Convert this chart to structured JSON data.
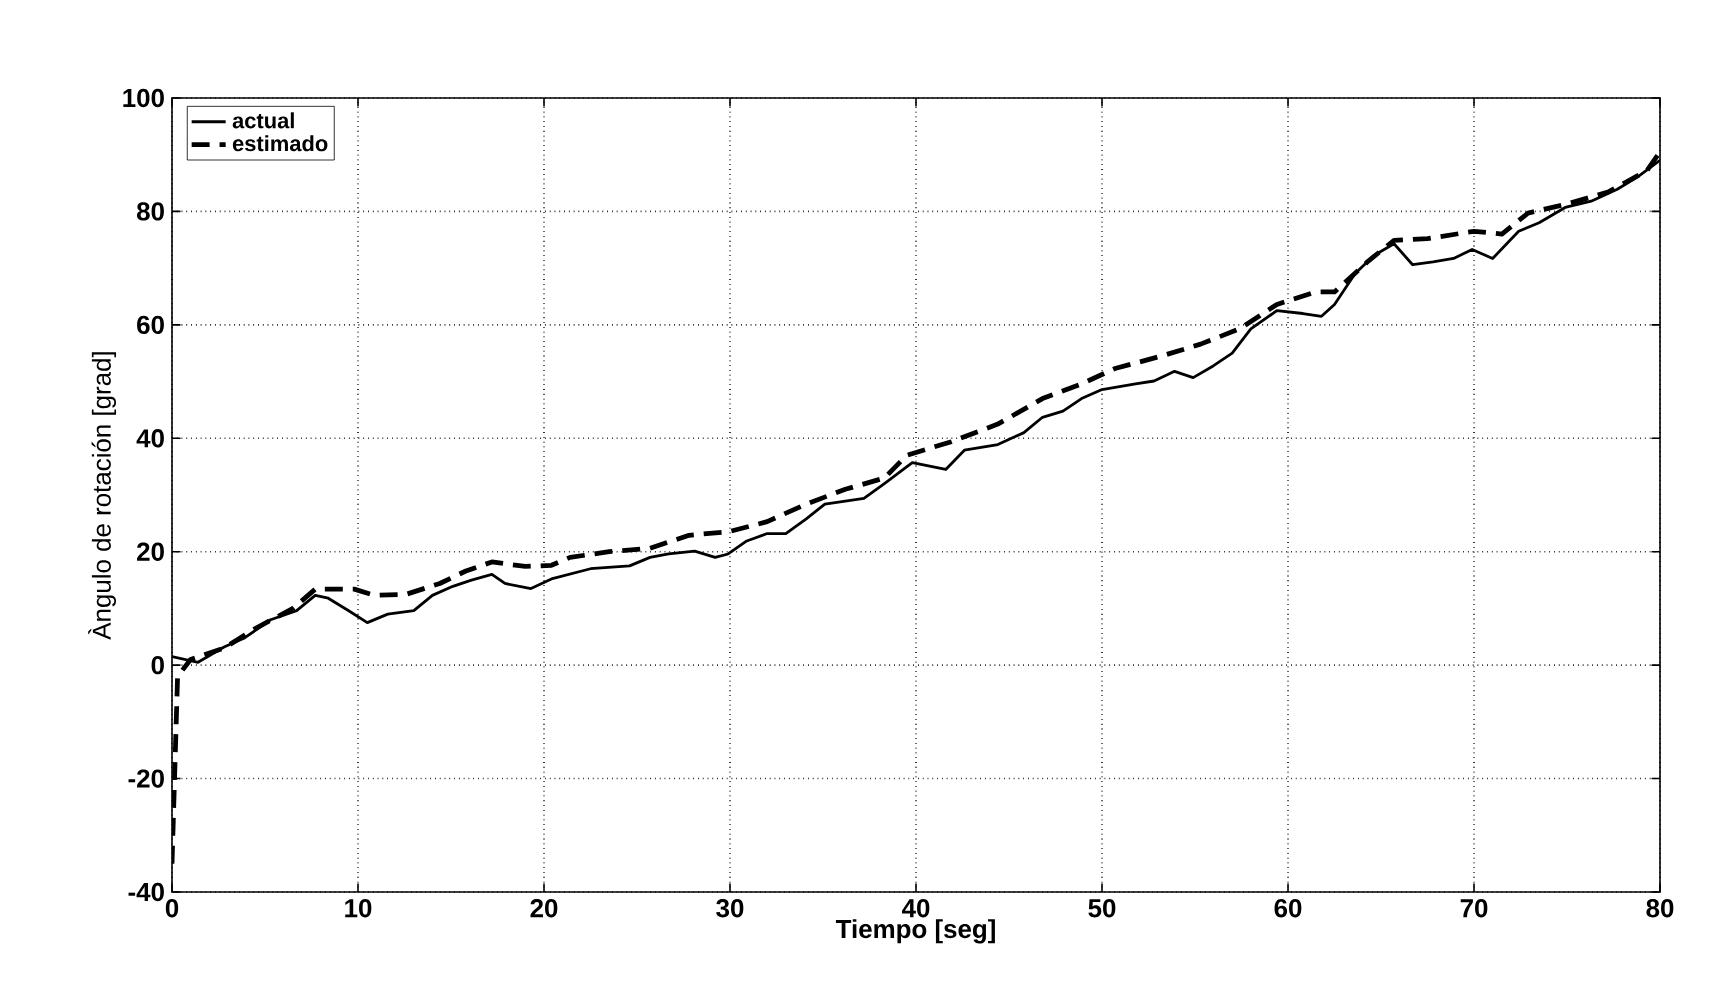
{
  "chart_data": {
    "type": "line",
    "xlabel": "Tiempo [seg]",
    "ylabel": "Àngulo de rotación [grad]",
    "xlim": [
      0,
      80
    ],
    "ylim": [
      -40,
      100
    ],
    "xticks": [
      0,
      10,
      20,
      30,
      40,
      50,
      60,
      70,
      80
    ],
    "yticks": [
      -40,
      -20,
      0,
      20,
      40,
      60,
      80,
      100
    ],
    "grid": true,
    "legend": "top left",
    "series": [
      {
        "name": "actual",
        "color": "#000000",
        "line_style": "solid",
        "x": [
          0,
          1.4,
          2.8,
          3.9,
          5.3,
          6.7,
          7.7,
          8.4,
          9.5,
          10.5,
          11.6,
          13,
          14,
          15.1,
          16.1,
          17.2,
          17.9,
          19.3,
          20.4,
          22.5,
          24.6,
          25.7,
          26.7,
          28.1,
          29.2,
          29.9,
          30.9,
          32,
          33,
          34.1,
          35.1,
          36.2,
          37.2,
          38.3,
          39.8,
          41.6,
          42.6,
          44.4,
          45.8,
          46.8,
          47.9,
          48.9,
          50,
          51.8,
          52.8,
          53.9,
          54.9,
          56,
          57,
          58,
          59.4,
          60.8,
          61.8,
          62.5,
          63.6,
          64.6,
          65.7,
          66.7,
          67.8,
          68.9,
          69.9,
          71,
          72.4,
          73.5,
          74.9,
          76.3,
          77.7,
          78.8,
          80
        ],
        "values": [
          1.5,
          0.5,
          3.2,
          4.8,
          8,
          9.6,
          12.3,
          11.8,
          9.6,
          7.5,
          9,
          9.6,
          12.3,
          13.9,
          15,
          16,
          14.4,
          13.5,
          15.2,
          17,
          17.5,
          19,
          19.6,
          20.1,
          19,
          19.6,
          21.9,
          23.2,
          23.2,
          25.8,
          28.4,
          28.9,
          29.4,
          32,
          35.7,
          34.5,
          37.9,
          38.9,
          41,
          43.7,
          44.8,
          47,
          48.6,
          49.6,
          50.1,
          51.8,
          50.7,
          52.8,
          55,
          59.3,
          62.5,
          62,
          61.5,
          63.6,
          69,
          72.2,
          74.3,
          70.6,
          71.1,
          71.7,
          73.3,
          71.7,
          76.5,
          78,
          80.7,
          81.8,
          83.9,
          86.1,
          89
        ]
      },
      {
        "name": "estimado",
        "color": "#000000",
        "line_style": "dashed",
        "x": [
          0,
          0.3,
          1,
          2.8,
          4.5,
          6.5,
          7.7,
          9.8,
          10.9,
          12.6,
          14.4,
          15.8,
          17.2,
          19,
          20.4,
          21.4,
          23.5,
          25.7,
          27.8,
          29.9,
          32,
          34.1,
          36.2,
          38.3,
          39.5,
          41.9,
          44.4,
          46.8,
          48.9,
          50.7,
          53.2,
          55.3,
          57.4,
          59.4,
          61.5,
          62.5,
          64.3,
          65.7,
          67.5,
          70,
          71.5,
          72.9,
          75,
          77.2,
          79.3,
          80
        ],
        "values": [
          -35,
          -2,
          1,
          3,
          6.5,
          10,
          13.4,
          13.4,
          12.3,
          12.5,
          14.4,
          16.6,
          18.2,
          17.4,
          17.6,
          19,
          20,
          20.6,
          22.9,
          23.5,
          25.3,
          28.4,
          31,
          33,
          37,
          39.4,
          42.5,
          47,
          49.6,
          52.3,
          54.5,
          56.6,
          59.3,
          63.6,
          65.8,
          65.8,
          71.2,
          74.9,
          75.2,
          76.5,
          76,
          79.7,
          81.3,
          83.4,
          87.2,
          90.5
        ]
      }
    ]
  }
}
